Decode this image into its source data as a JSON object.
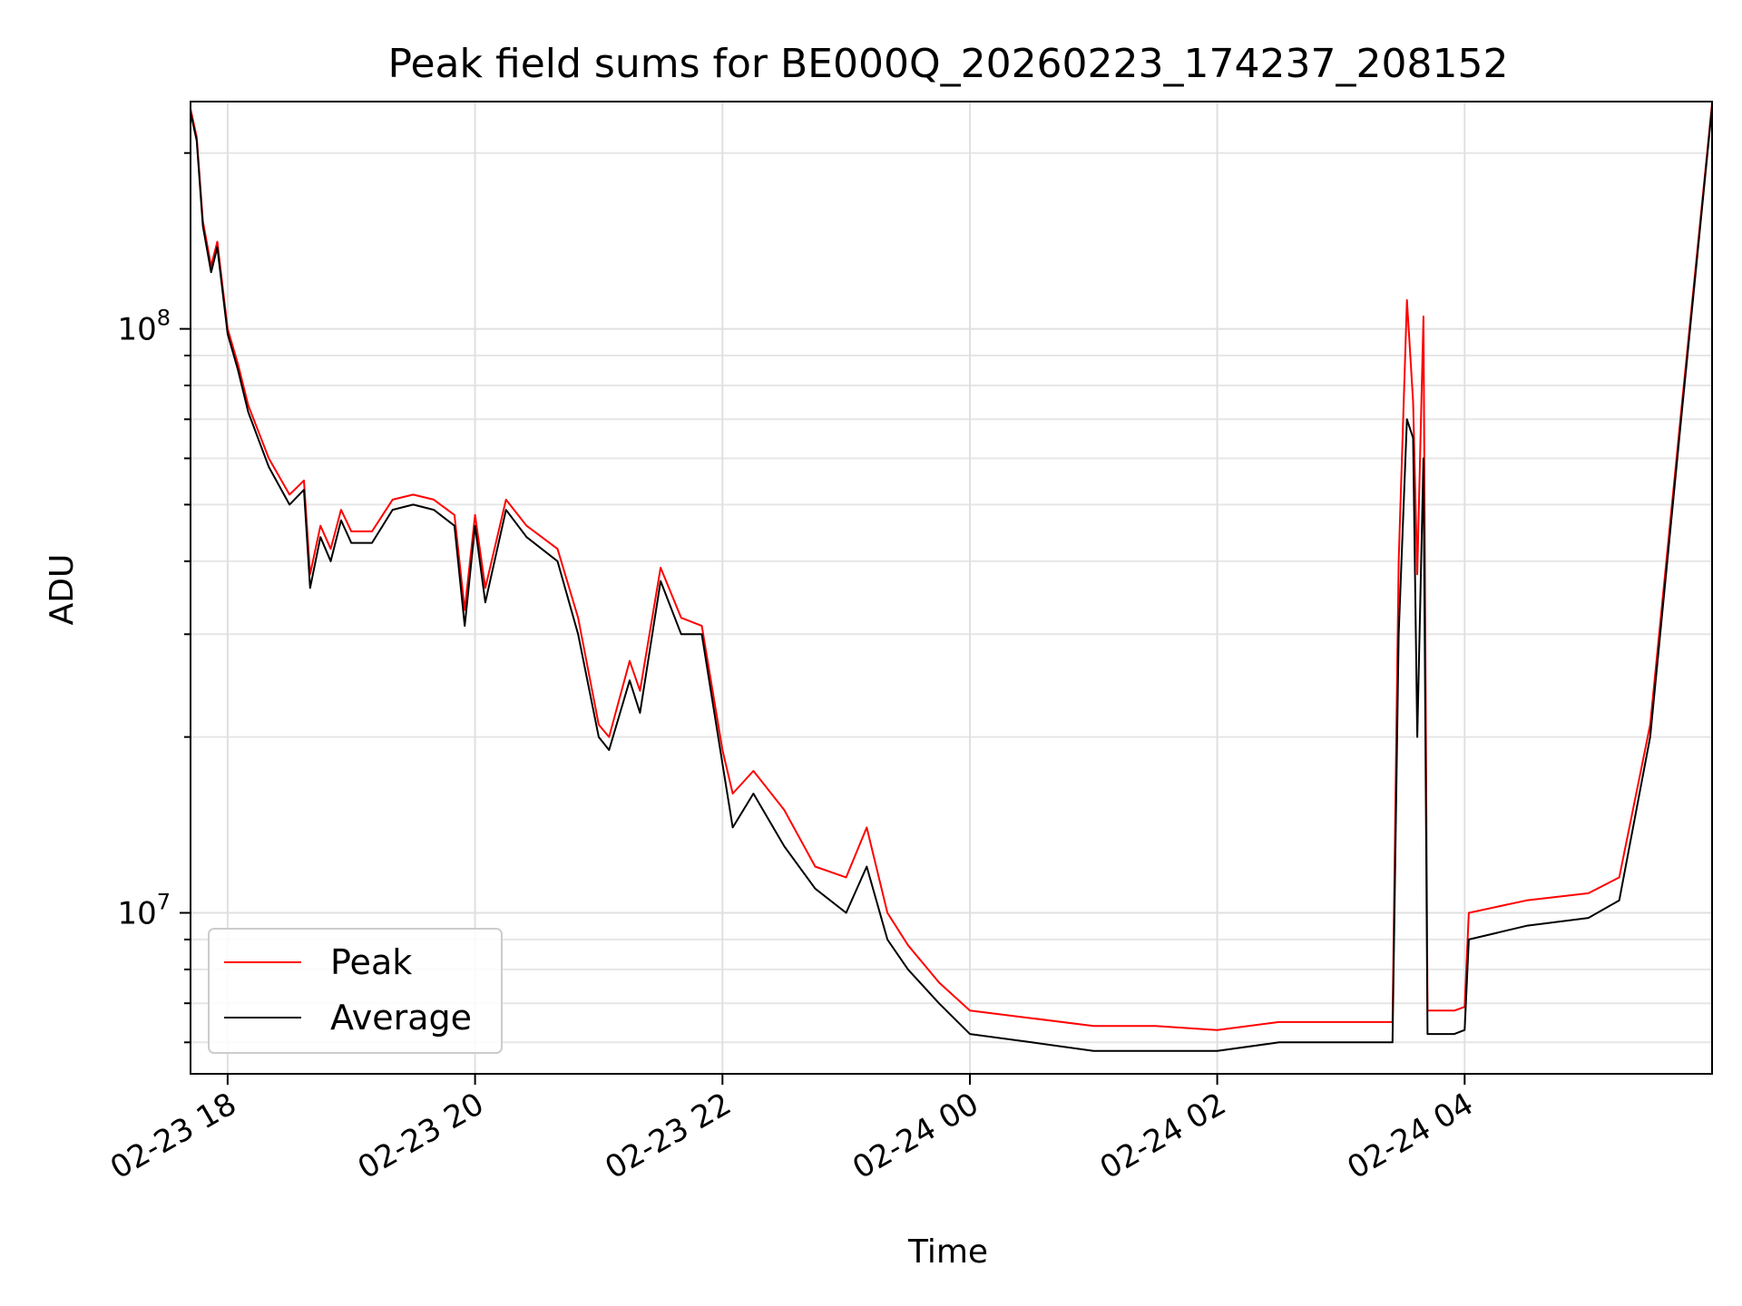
{
  "chart_data": {
    "type": "line",
    "title": "Peak field sums for BE000Q_20260223_174237_208152",
    "xlabel": "Time",
    "ylabel": "ADU",
    "y_scale": "log",
    "ylim": [
      5300000,
      245000000
    ],
    "xlim": [
      "2026-02-23 17:42",
      "2026-02-24 06:00"
    ],
    "x_ticks": [
      {
        "t": "2026-02-23 18:00",
        "label": "02-23 18"
      },
      {
        "t": "2026-02-23 20:00",
        "label": "02-23 20"
      },
      {
        "t": "2026-02-23 22:00",
        "label": "02-23 22"
      },
      {
        "t": "2026-02-24 00:00",
        "label": "02-24 00"
      },
      {
        "t": "2026-02-24 02:00",
        "label": "02-24 02"
      },
      {
        "t": "2026-02-24 04:00",
        "label": "02-24 04"
      }
    ],
    "y_major_ticks": [
      {
        "value": 10000000,
        "base": "10",
        "exp": "7"
      },
      {
        "value": 100000000,
        "base": "10",
        "exp": "8"
      }
    ],
    "y_minor_ticks": [
      6000000,
      7000000,
      8000000,
      9000000,
      20000000,
      30000000,
      40000000,
      50000000,
      60000000,
      70000000,
      80000000,
      90000000,
      200000000
    ],
    "grid": true,
    "legend_position": "lower-left",
    "series": [
      {
        "name": "Average",
        "color": "#000000",
        "points": [
          [
            "2026-02-23 17:42",
            235000000
          ],
          [
            "2026-02-23 17:45",
            210000000
          ],
          [
            "2026-02-23 17:48",
            150000000
          ],
          [
            "2026-02-23 17:52",
            125000000
          ],
          [
            "2026-02-23 17:55",
            138000000
          ],
          [
            "2026-02-23 18:00",
            98000000
          ],
          [
            "2026-02-23 18:05",
            85000000
          ],
          [
            "2026-02-23 18:10",
            72000000
          ],
          [
            "2026-02-23 18:20",
            58000000
          ],
          [
            "2026-02-23 18:30",
            50000000
          ],
          [
            "2026-02-23 18:37",
            53000000
          ],
          [
            "2026-02-23 18:40",
            36000000
          ],
          [
            "2026-02-23 18:45",
            44000000
          ],
          [
            "2026-02-23 18:50",
            40000000
          ],
          [
            "2026-02-23 18:55",
            47000000
          ],
          [
            "2026-02-23 19:00",
            43000000
          ],
          [
            "2026-02-23 19:10",
            43000000
          ],
          [
            "2026-02-23 19:20",
            49000000
          ],
          [
            "2026-02-23 19:30",
            50000000
          ],
          [
            "2026-02-23 19:40",
            49000000
          ],
          [
            "2026-02-23 19:50",
            46000000
          ],
          [
            "2026-02-23 19:55",
            31000000
          ],
          [
            "2026-02-23 20:00",
            46000000
          ],
          [
            "2026-02-23 20:05",
            34000000
          ],
          [
            "2026-02-23 20:15",
            49000000
          ],
          [
            "2026-02-23 20:25",
            44000000
          ],
          [
            "2026-02-23 20:40",
            40000000
          ],
          [
            "2026-02-23 20:50",
            30000000
          ],
          [
            "2026-02-23 21:00",
            20000000
          ],
          [
            "2026-02-23 21:05",
            19000000
          ],
          [
            "2026-02-23 21:15",
            25000000
          ],
          [
            "2026-02-23 21:20",
            22000000
          ],
          [
            "2026-02-23 21:30",
            37000000
          ],
          [
            "2026-02-23 21:40",
            30000000
          ],
          [
            "2026-02-23 21:50",
            30000000
          ],
          [
            "2026-02-23 22:00",
            18000000
          ],
          [
            "2026-02-23 22:05",
            14000000
          ],
          [
            "2026-02-23 22:15",
            16000000
          ],
          [
            "2026-02-23 22:30",
            13000000
          ],
          [
            "2026-02-23 22:45",
            11000000
          ],
          [
            "2026-02-23 23:00",
            10000000
          ],
          [
            "2026-02-23 23:10",
            12000000
          ],
          [
            "2026-02-23 23:20",
            9000000
          ],
          [
            "2026-02-23 23:30",
            8000000
          ],
          [
            "2026-02-23 23:45",
            7000000
          ],
          [
            "2026-02-24 00:00",
            6200000
          ],
          [
            "2026-02-24 00:30",
            6000000
          ],
          [
            "2026-02-24 01:00",
            5800000
          ],
          [
            "2026-02-24 01:30",
            5800000
          ],
          [
            "2026-02-24 02:00",
            5800000
          ],
          [
            "2026-02-24 02:30",
            6000000
          ],
          [
            "2026-02-24 03:00",
            6000000
          ],
          [
            "2026-02-24 03:25",
            6000000
          ],
          [
            "2026-02-24 03:28",
            30000000
          ],
          [
            "2026-02-24 03:32",
            70000000
          ],
          [
            "2026-02-24 03:35",
            65000000
          ],
          [
            "2026-02-24 03:37",
            20000000
          ],
          [
            "2026-02-24 03:40",
            60000000
          ],
          [
            "2026-02-24 03:42",
            6200000
          ],
          [
            "2026-02-24 03:55",
            6200000
          ],
          [
            "2026-02-24 04:00",
            6300000
          ],
          [
            "2026-02-24 04:02",
            9000000
          ],
          [
            "2026-02-24 04:30",
            9500000
          ],
          [
            "2026-02-24 05:00",
            9800000
          ],
          [
            "2026-02-24 05:15",
            10500000
          ],
          [
            "2026-02-24 05:30",
            20000000
          ],
          [
            "2026-02-24 05:45",
            70000000
          ],
          [
            "2026-02-24 06:00",
            240000000
          ]
        ]
      },
      {
        "name": "Peak",
        "color": "#ff0000",
        "points": [
          [
            "2026-02-23 17:42",
            238000000
          ],
          [
            "2026-02-23 17:45",
            213000000
          ],
          [
            "2026-02-23 17:48",
            153000000
          ],
          [
            "2026-02-23 17:52",
            128000000
          ],
          [
            "2026-02-23 17:55",
            141000000
          ],
          [
            "2026-02-23 18:00",
            100000000
          ],
          [
            "2026-02-23 18:05",
            87000000
          ],
          [
            "2026-02-23 18:10",
            74000000
          ],
          [
            "2026-02-23 18:20",
            60000000
          ],
          [
            "2026-02-23 18:30",
            52000000
          ],
          [
            "2026-02-23 18:37",
            55000000
          ],
          [
            "2026-02-23 18:40",
            38000000
          ],
          [
            "2026-02-23 18:45",
            46000000
          ],
          [
            "2026-02-23 18:50",
            42000000
          ],
          [
            "2026-02-23 18:55",
            49000000
          ],
          [
            "2026-02-23 19:00",
            45000000
          ],
          [
            "2026-02-23 19:10",
            45000000
          ],
          [
            "2026-02-23 19:20",
            51000000
          ],
          [
            "2026-02-23 19:30",
            52000000
          ],
          [
            "2026-02-23 19:40",
            51000000
          ],
          [
            "2026-02-23 19:50",
            48000000
          ],
          [
            "2026-02-23 19:55",
            33000000
          ],
          [
            "2026-02-23 20:00",
            48000000
          ],
          [
            "2026-02-23 20:05",
            36000000
          ],
          [
            "2026-02-23 20:15",
            51000000
          ],
          [
            "2026-02-23 20:25",
            46000000
          ],
          [
            "2026-02-23 20:40",
            42000000
          ],
          [
            "2026-02-23 20:50",
            32000000
          ],
          [
            "2026-02-23 21:00",
            21000000
          ],
          [
            "2026-02-23 21:05",
            20000000
          ],
          [
            "2026-02-23 21:15",
            27000000
          ],
          [
            "2026-02-23 21:20",
            24000000
          ],
          [
            "2026-02-23 21:30",
            39000000
          ],
          [
            "2026-02-23 21:40",
            32000000
          ],
          [
            "2026-02-23 21:50",
            31000000
          ],
          [
            "2026-02-23 22:00",
            19000000
          ],
          [
            "2026-02-23 22:05",
            16000000
          ],
          [
            "2026-02-23 22:15",
            17500000
          ],
          [
            "2026-02-23 22:30",
            15000000
          ],
          [
            "2026-02-23 22:45",
            12000000
          ],
          [
            "2026-02-23 23:00",
            11500000
          ],
          [
            "2026-02-23 23:10",
            14000000
          ],
          [
            "2026-02-23 23:20",
            10000000
          ],
          [
            "2026-02-23 23:30",
            8800000
          ],
          [
            "2026-02-23 23:45",
            7600000
          ],
          [
            "2026-02-24 00:00",
            6800000
          ],
          [
            "2026-02-24 00:30",
            6600000
          ],
          [
            "2026-02-24 01:00",
            6400000
          ],
          [
            "2026-02-24 01:30",
            6400000
          ],
          [
            "2026-02-24 02:00",
            6300000
          ],
          [
            "2026-02-24 02:30",
            6500000
          ],
          [
            "2026-02-24 03:00",
            6500000
          ],
          [
            "2026-02-24 03:25",
            6500000
          ],
          [
            "2026-02-24 03:28",
            40000000
          ],
          [
            "2026-02-24 03:32",
            112000000
          ],
          [
            "2026-02-24 03:35",
            75000000
          ],
          [
            "2026-02-24 03:37",
            38000000
          ],
          [
            "2026-02-24 03:40",
            105000000
          ],
          [
            "2026-02-24 03:42",
            6800000
          ],
          [
            "2026-02-24 03:55",
            6800000
          ],
          [
            "2026-02-24 04:00",
            6900000
          ],
          [
            "2026-02-24 04:02",
            10000000
          ],
          [
            "2026-02-24 04:30",
            10500000
          ],
          [
            "2026-02-24 05:00",
            10800000
          ],
          [
            "2026-02-24 05:15",
            11500000
          ],
          [
            "2026-02-24 05:30",
            21000000
          ],
          [
            "2026-02-24 05:45",
            72000000
          ],
          [
            "2026-02-24 06:00",
            243000000
          ]
        ]
      }
    ]
  }
}
